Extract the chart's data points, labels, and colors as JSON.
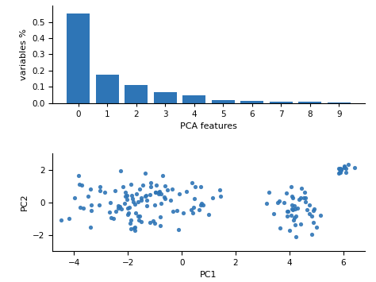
{
  "bar_values": [
    0.55,
    0.175,
    0.11,
    0.067,
    0.049,
    0.018,
    0.011,
    0.007,
    0.007,
    0.002
  ],
  "bar_color": "#2e75b6",
  "bar_xlabel": "PCA features",
  "bar_ylabel": "variables %",
  "bar_ylim": [
    0,
    0.6
  ],
  "bar_yticks": [
    0.0,
    0.1,
    0.2,
    0.3,
    0.4,
    0.5
  ],
  "scatter_xlabel": "PC1",
  "scatter_ylabel": "PC2",
  "scatter_color": "#2e75b6",
  "scatter_xlim": [
    -4.8,
    6.8
  ],
  "scatter_ylim": [
    -3.0,
    3.0
  ],
  "scatter_xticks": [
    -4,
    -2,
    0,
    2,
    4,
    6
  ],
  "scatter_yticks": [
    -2,
    0,
    2
  ],
  "random_seed": 7,
  "n1": 110,
  "n2": 45,
  "n3": 15
}
